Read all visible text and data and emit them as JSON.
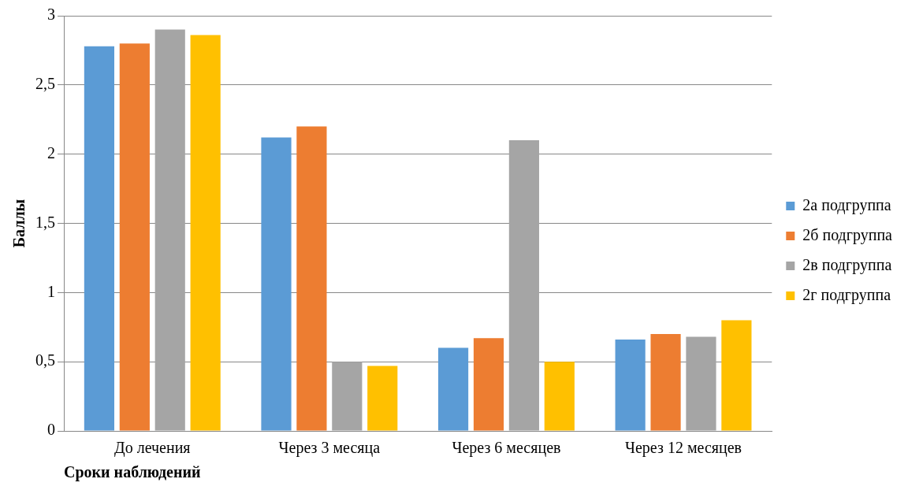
{
  "chart_data": {
    "type": "bar",
    "xlabel": "Сроки наблюдений",
    "ylabel": "Баллы",
    "categories": [
      "До лечения",
      "Через 3 месяца",
      "Через 6 месяцев",
      "Через 12 месяцев"
    ],
    "series": [
      {
        "name": "2а подгруппа",
        "color": "#5b9bd5",
        "values": [
          2.78,
          2.12,
          0.6,
          0.66
        ]
      },
      {
        "name": "2б подгруппа",
        "color": "#ed7d31",
        "values": [
          2.8,
          2.2,
          0.67,
          0.7
        ]
      },
      {
        "name": "2в подгруппа",
        "color": "#a5a5a5",
        "values": [
          2.9,
          0.5,
          2.1,
          0.68
        ]
      },
      {
        "name": "2г подгруппа",
        "color": "#ffc000",
        "values": [
          2.86,
          0.47,
          0.5,
          0.8
        ]
      }
    ],
    "ylim": [
      0,
      3
    ],
    "yticks": [
      0,
      {
        "value": 0.5,
        "label": "0,5"
      },
      1,
      {
        "value": 1.5,
        "label": "1,5"
      },
      2,
      {
        "value": 2.5,
        "label": "2,5"
      },
      3
    ],
    "grid": "y",
    "legend": "right"
  }
}
